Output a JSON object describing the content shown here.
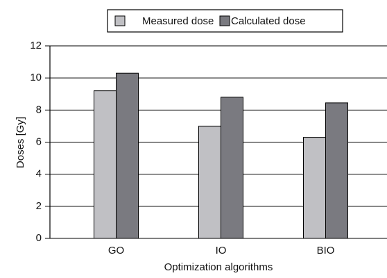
{
  "chart_data": {
    "type": "bar",
    "xlabel": "Optimization algorithms",
    "ylabel": "Doses [Gy]",
    "categories": [
      "GO",
      "IO",
      "BIO"
    ],
    "series": [
      {
        "name": "Measured dose",
        "color": "#c0c0c4",
        "values": [
          9.2,
          7.0,
          6.3
        ]
      },
      {
        "name": "Calculated dose",
        "color": "#7a7a80",
        "values": [
          10.3,
          8.8,
          8.45
        ]
      }
    ],
    "ylim": [
      0,
      12
    ],
    "yticks": [
      0,
      2,
      4,
      6,
      8,
      10,
      12
    ],
    "grid": true,
    "legend": "top"
  }
}
